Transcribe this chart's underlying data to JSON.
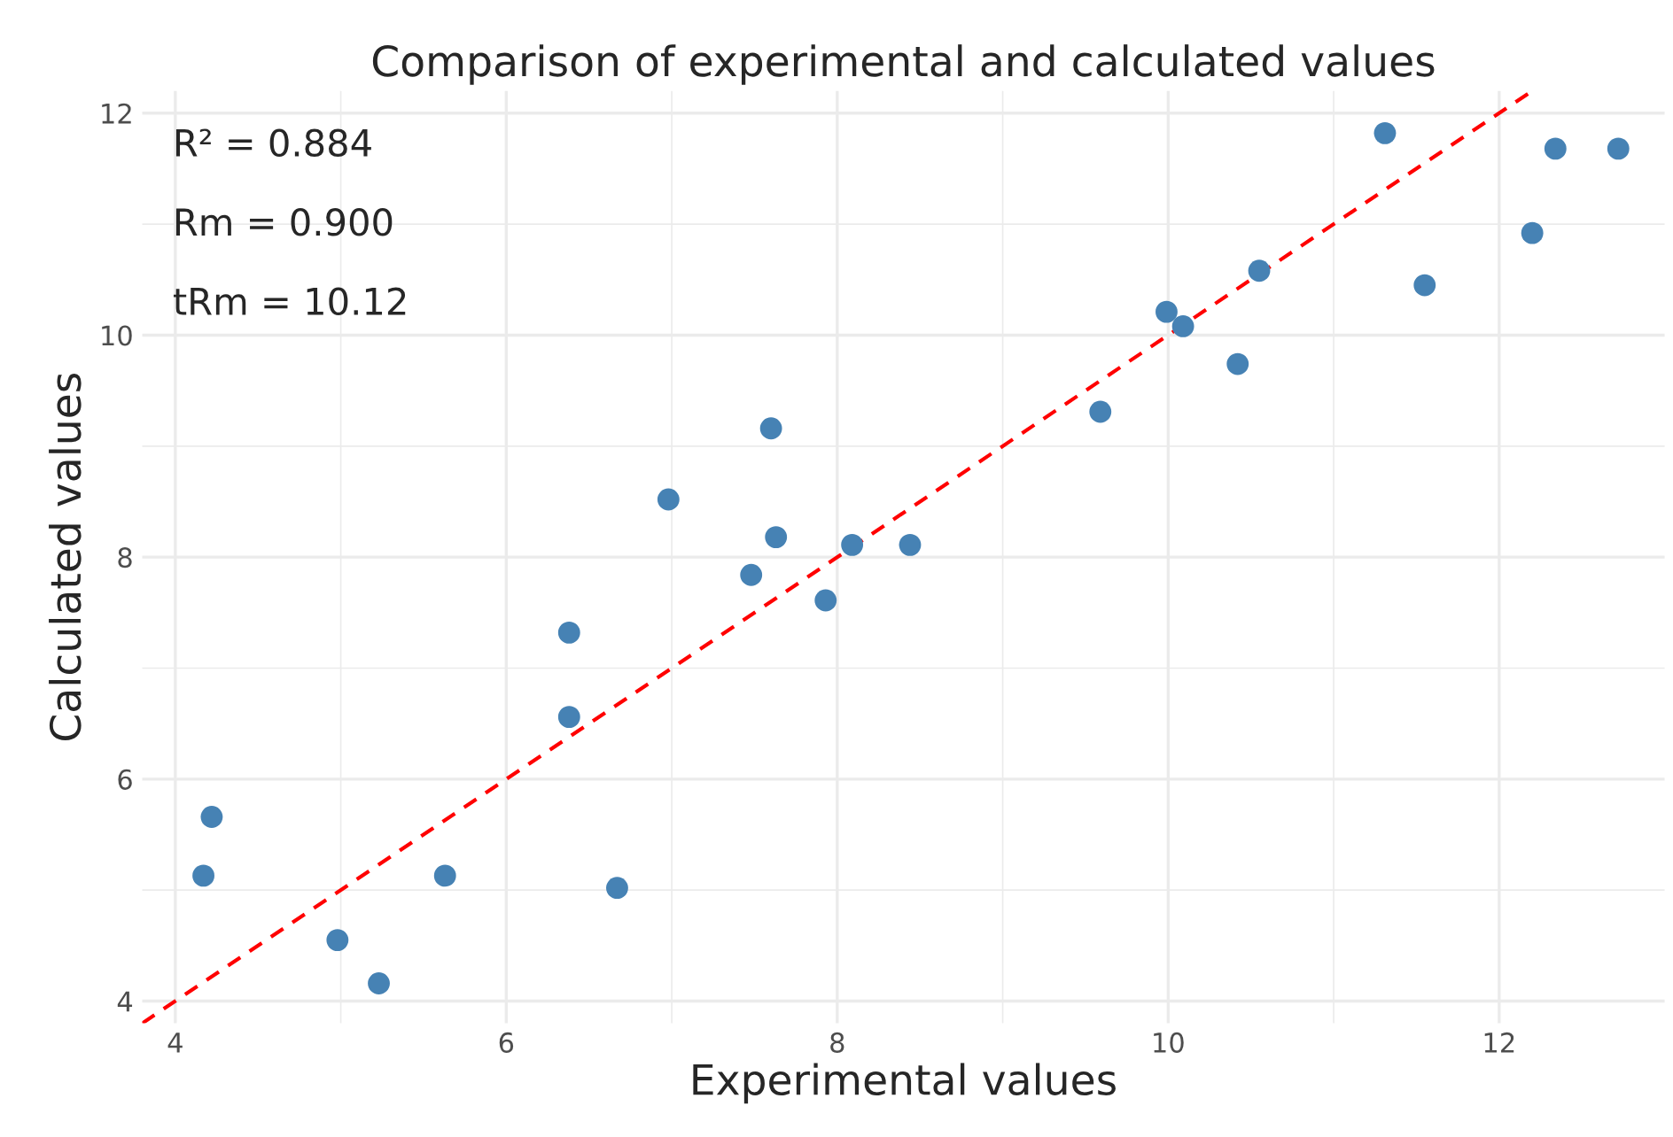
{
  "chart_data": {
    "type": "scatter",
    "title": "Comparison of experimental and calculated values",
    "xlabel": "Experimental values",
    "ylabel": "Calculated values",
    "xlim": [
      3.8,
      13.0
    ],
    "ylim": [
      3.8,
      12.2
    ],
    "xticks": [
      4,
      6,
      8,
      10,
      12
    ],
    "yticks": [
      4,
      6,
      8,
      10,
      12
    ],
    "grid": true,
    "marker": "circle",
    "series": [
      {
        "color": "#4682b4",
        "x": [
          4.22,
          4.17,
          4.98,
          5.23,
          5.63,
          6.67,
          6.38,
          6.38,
          6.98,
          7.48,
          7.63,
          7.6,
          7.93,
          8.09,
          8.44,
          9.59,
          9.99,
          10.09,
          10.42,
          10.55,
          11.31,
          11.55,
          12.2,
          12.34,
          12.72
        ],
        "values": [
          5.66,
          5.13,
          4.55,
          4.16,
          5.13,
          5.02,
          6.56,
          7.32,
          8.52,
          7.84,
          8.18,
          9.16,
          7.61,
          8.11,
          8.11,
          9.31,
          10.21,
          10.08,
          9.74,
          10.58,
          11.82,
          10.45,
          10.92,
          11.68,
          11.68
        ]
      },
      {
        "type": "line",
        "color": "#ff0000",
        "line_style": "dashed",
        "marker": "none",
        "x": [
          3.8,
          12.2
        ],
        "values": [
          3.8,
          12.2
        ]
      }
    ],
    "annotations": [
      "R² = 0.884",
      "Rm = 0.900",
      "tRm = 10.12"
    ]
  }
}
